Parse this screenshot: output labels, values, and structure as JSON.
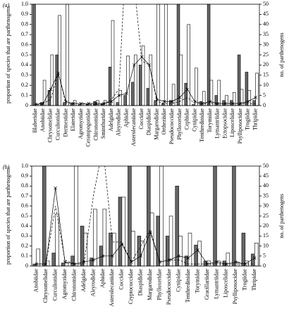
{
  "chart_data": [
    {
      "type": "bar",
      "label": "(a)",
      "y_label": "proportion of species that are parthenogens",
      "y2_label": "no. of parthenogens",
      "categories": [
        "Blaberidae",
        "Anobiidae",
        "Chrysomelidae",
        "Curculionidae",
        "Dermestidae",
        "Elateridae",
        "Agromyzidae",
        "Ceratopogonidae",
        "Chironomidae",
        "Sminthuridae",
        "Adelgidae",
        "Aleyrodidae",
        "Aphidae",
        "Asterolecaniidae",
        "Coccidae",
        "Diaspididae",
        "Margarodidae",
        "Ortheziidae",
        "Pseudococcidae",
        "Phylloxeridae",
        "Cephidae",
        "Cynipidae",
        "Tenthredinidae",
        "Torymidae",
        "Lymantriidae",
        "Ectopsocidae",
        "Liposcelidae",
        "Psylliposocidae",
        "Trogiidae",
        "Thripidae"
      ],
      "series": [
        {
          "style": "hatched",
          "color": "#555555",
          "values": [
            1.0,
            0.03,
            0.15,
            0.5,
            0.03,
            0.02,
            0.01,
            0.01,
            0.04,
            0.02,
            0.38,
            0.03,
            0.1,
            0.23,
            0.4,
            0.17,
            0.05,
            0.02,
            0.05,
            1.0,
            0.22,
            0.01,
            0.04,
            1.0,
            0.1,
            0.05,
            0.05,
            0.5,
            0.33,
            0.05
          ]
        },
        {
          "style": "open",
          "color": "#ffffff",
          "values": [
            0.01,
            0.25,
            0.5,
            0.89,
            1.0,
            0.05,
            0.02,
            0.02,
            0.05,
            0.05,
            0.84,
            0.15,
            0.49,
            0.5,
            0.59,
            0.5,
            1.0,
            1.0,
            0.21,
            0.5,
            0.8,
            0.37,
            0.14,
            0.25,
            0.25,
            0.1,
            0.13,
            0.16,
            0.15,
            0.32
          ]
        },
        {
          "type": "line",
          "dash": true,
          "axis": "y2",
          "color": "#000000",
          "values": [
            1,
            1,
            3,
            16,
            1,
            1,
            1,
            0.5,
            0.5,
            0.5,
            3,
            8,
            80,
            60,
            22,
            20,
            2,
            1,
            1,
            2,
            4,
            1,
            1,
            1,
            1,
            1,
            1,
            1,
            1,
            1
          ]
        },
        {
          "type": "line",
          "marker": "x",
          "axis": "y2",
          "color": "#000000",
          "values": [
            0.5,
            1,
            8,
            16,
            2,
            1,
            1,
            1,
            1,
            1,
            2,
            5,
            6,
            20,
            24,
            20,
            3,
            2,
            2,
            4,
            8,
            2,
            1,
            2,
            1,
            1,
            1,
            1,
            2,
            4
          ]
        }
      ],
      "ylim": [
        0,
        1
      ],
      "yticks": [
        0,
        0.1,
        0.2,
        0.3,
        0.4,
        0.5,
        0.6,
        0.7,
        0.8,
        0.9,
        {
          "value": 1,
          "label": "1.0"
        }
      ],
      "y2lim": [
        0,
        50
      ],
      "y2ticks": [
        0,
        5,
        10,
        15,
        20,
        25,
        30,
        35,
        40,
        45,
        50
      ]
    },
    {
      "type": "bar",
      "label": "(b)",
      "y_label": "proportion of species that are parthenogens",
      "y2_label": "no. of parthenogens",
      "categories": [
        "Anobiidae",
        "Chrysomelidae",
        "Curculionidae",
        "Agromyzidae",
        "Chironomidae",
        "Adelgidae",
        "Aleyrodidae",
        "Aphidae",
        "Asterolecaniidae",
        "Coccidae",
        "Cryptococcidae",
        "Diaspididae",
        "Margarodidae",
        "Phylloxeridae",
        "Pseudococcidae",
        "Cynipidae",
        "Tenthredinidae",
        "Torymidae",
        "Gracillariidae",
        "Lymantriidae",
        "Liposcelidae",
        "Psylliposocidae",
        "Trogiidae",
        "Thripidae"
      ],
      "series": [
        {
          "style": "hatched",
          "color": "#555555",
          "values": [
            0.02,
            1.0,
            0.13,
            0.03,
            0.1,
            0.4,
            0.08,
            0.2,
            0.33,
            0.69,
            1.0,
            0.3,
            1.0,
            0.5,
            0.3,
            0.8,
            0.1,
            0.21,
            0.05,
            1.0,
            0.05,
            1.0,
            0.33,
            0.12
          ]
        },
        {
          "style": "open",
          "color": "#ffffff",
          "values": [
            0.17,
            0.05,
            0.52,
            0.03,
            1.0,
            0.33,
            0.57,
            0.57,
            0.33,
            0.69,
            0.35,
            0.25,
            0.53,
            1.0,
            0.5,
            0.3,
            0.33,
            0.25,
            0.05,
            0.05,
            0.13,
            0.04,
            0.05,
            0.23
          ]
        },
        {
          "type": "line",
          "dash": true,
          "axis": "y2",
          "color": "#000000",
          "values": [
            1,
            1,
            30,
            3,
            1,
            1,
            35,
            60,
            12,
            12,
            2,
            10,
            18,
            2,
            3,
            3,
            1,
            1,
            1,
            1,
            1,
            1,
            1,
            1
          ]
        },
        {
          "type": "line",
          "marker": "x",
          "axis": "y2",
          "color": "#000000",
          "values": [
            1,
            1,
            39,
            2,
            1,
            2,
            3,
            5,
            5,
            11,
            2,
            5,
            17,
            2,
            3,
            5,
            4,
            8,
            1,
            2,
            1,
            2,
            1,
            4
          ]
        }
      ],
      "ylim": [
        0,
        1
      ],
      "yticks": [
        0,
        0.1,
        0.2,
        0.3,
        0.4,
        0.5,
        0.6,
        0.7,
        0.8,
        0.9,
        {
          "value": 1,
          "label": "1.0"
        }
      ],
      "y2lim": [
        0,
        50
      ],
      "y2ticks": [
        0,
        5,
        10,
        15,
        20,
        25,
        30,
        35,
        40,
        45,
        50
      ]
    }
  ]
}
